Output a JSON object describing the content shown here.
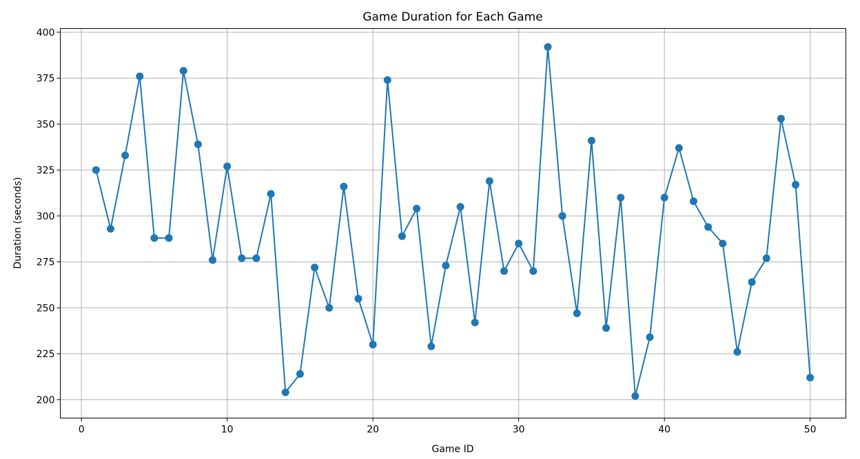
{
  "chart_data": {
    "type": "line",
    "title": "Game Duration for Each Game",
    "xlabel": "Game ID",
    "ylabel": "Duration (seconds)",
    "xlim": [
      -1.45,
      52.45
    ],
    "ylim": [
      190,
      402
    ],
    "xticks": [
      0,
      10,
      20,
      30,
      40,
      50
    ],
    "yticks": [
      200,
      225,
      250,
      275,
      300,
      325,
      350,
      375,
      400
    ],
    "grid": true,
    "marker": "circle",
    "color": "#1f77b4",
    "x": [
      1,
      2,
      3,
      4,
      5,
      6,
      7,
      8,
      9,
      10,
      11,
      12,
      13,
      14,
      15,
      16,
      17,
      18,
      19,
      20,
      21,
      22,
      23,
      24,
      25,
      26,
      27,
      28,
      29,
      30,
      31,
      32,
      33,
      34,
      35,
      36,
      37,
      38,
      39,
      40,
      41,
      42,
      43,
      44,
      45,
      46,
      47,
      48,
      49,
      50
    ],
    "series": [
      {
        "values": [
          325,
          293,
          333,
          376,
          288,
          288,
          379,
          339,
          276,
          327,
          277,
          277,
          312,
          204,
          214,
          272,
          250,
          316,
          255,
          230,
          374,
          289,
          304,
          229,
          273,
          305,
          242,
          319,
          270,
          285,
          270,
          392,
          300,
          247,
          341,
          239,
          310,
          202,
          234,
          310,
          337,
          308,
          294,
          285,
          226,
          264,
          277,
          353,
          317,
          212
        ]
      }
    ]
  }
}
